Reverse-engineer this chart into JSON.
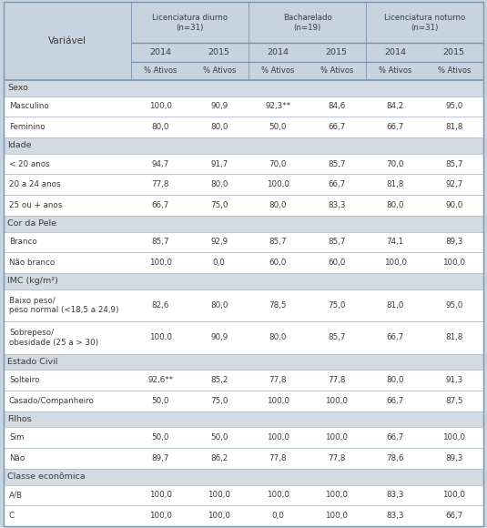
{
  "col_headers_line1": [
    "Licenciatura diurno\n(n=31)",
    "Bacharelado\n(n=19)",
    "Licenciatura noturno\n(n=31)"
  ],
  "col_headers_line2": [
    "2014",
    "2015",
    "2014",
    "2015",
    "2014",
    "2015"
  ],
  "col_headers_line3": [
    "% Ativos",
    "% Ativos",
    "% Ativos",
    "% Ativos",
    "% Ativos",
    "% Ativos"
  ],
  "variavel_label": "Variável",
  "sections": [
    {
      "name": "Sexo",
      "rows": [
        {
          "label": "Masculino",
          "values": [
            "100,0",
            "90,9",
            "92,3**",
            "84,6",
            "84,2",
            "95,0"
          ]
        },
        {
          "label": "Feminino",
          "values": [
            "80,0",
            "80,0",
            "50,0",
            "66,7",
            "66,7",
            "81,8"
          ]
        }
      ]
    },
    {
      "name": "Idade",
      "rows": [
        {
          "label": "< 20 anos",
          "values": [
            "94,7",
            "91,7",
            "70,0",
            "85,7",
            "70,0",
            "85,7"
          ]
        },
        {
          "label": "20 a 24 anos",
          "values": [
            "77,8",
            "80,0",
            "100,0",
            "66,7",
            "81,8",
            "92,7"
          ]
        },
        {
          "label": "25 ou + anos",
          "values": [
            "66,7",
            "75,0",
            "80,0",
            "83,3",
            "80,0",
            "90,0"
          ]
        }
      ]
    },
    {
      "name": "Cor da Pele",
      "rows": [
        {
          "label": "Branco",
          "values": [
            "85,7",
            "92,9",
            "85,7",
            "85,7",
            "74,1",
            "89,3"
          ]
        },
        {
          "label": "Não branco",
          "values": [
            "100,0",
            "0,0",
            "60,0",
            "60,0",
            "100,0",
            "100,0"
          ]
        }
      ]
    },
    {
      "name": "IMC (kg/m²)",
      "rows": [
        {
          "label": "Baixo peso/\npeso normal (<18,5 a 24,9)",
          "values": [
            "82,6",
            "80,0",
            "78,5",
            "75,0",
            "81,0",
            "95,0"
          ]
        },
        {
          "label": "Sobrepeso/\nobesidade (25 a > 30)",
          "values": [
            "100,0",
            "90,9",
            "80,0",
            "85,7",
            "66,7",
            "81,8"
          ]
        }
      ]
    },
    {
      "name": "Estado Civil",
      "rows": [
        {
          "label": "Solteiro",
          "values": [
            "92,6**",
            "85,2",
            "77,8",
            "77,8",
            "80,0",
            "91,3"
          ]
        },
        {
          "label": "Casado/Companheiro",
          "values": [
            "50,0",
            "75,0",
            "100,0",
            "100,0",
            "66,7",
            "87,5"
          ]
        }
      ]
    },
    {
      "name": "Filhos",
      "rows": [
        {
          "label": "Sim",
          "values": [
            "50,0",
            "50,0",
            "100,0",
            "100,0",
            "66,7",
            "100,0"
          ]
        },
        {
          "label": "Não",
          "values": [
            "89,7",
            "86,2",
            "77,8",
            "77,8",
            "78,6",
            "89,3"
          ]
        }
      ]
    },
    {
      "name": "Classe econômica",
      "rows": [
        {
          "label": "A/B",
          "values": [
            "100,0",
            "100,0",
            "100,0",
            "100,0",
            "83,3",
            "100,0"
          ]
        },
        {
          "label": "C",
          "values": [
            "100,0",
            "100,0",
            "0,0",
            "100,0",
            "83,3",
            "66,7"
          ]
        }
      ]
    }
  ],
  "bg_header": "#c8d3e0",
  "bg_section": "#d2dae4",
  "bg_data": "#ffffff",
  "divider_dark": "#7a93b0",
  "divider_light": "#b0bfcc",
  "text_color": "#3a3a3a",
  "fig_bg": "#c8d3e0"
}
